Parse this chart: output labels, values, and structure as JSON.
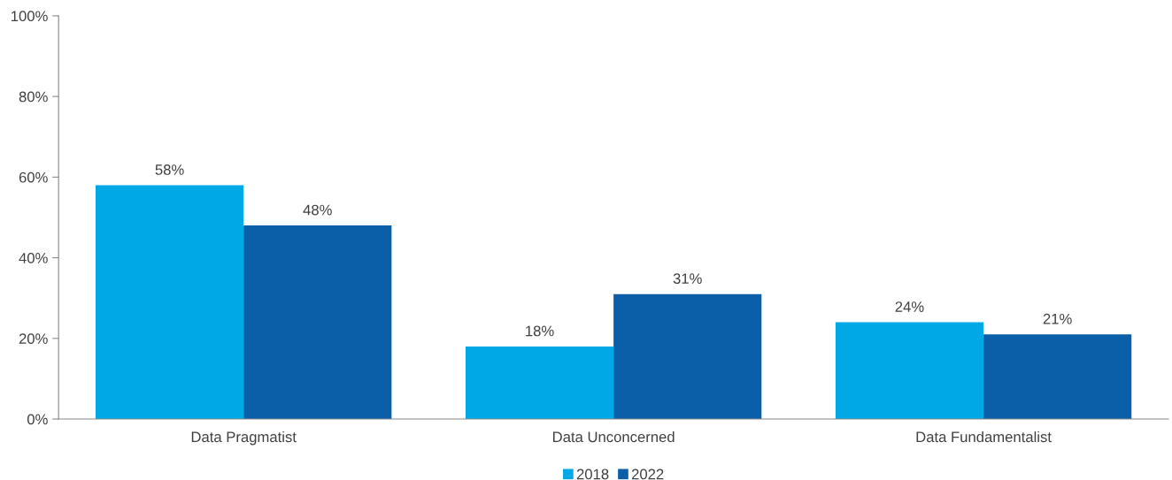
{
  "chart_data": {
    "type": "bar",
    "categories": [
      "Data Pragmatist",
      "Data Unconcerned",
      "Data Fundamentalist"
    ],
    "series": [
      {
        "name": "2018",
        "color": "#00a8e6",
        "values": [
          58,
          18,
          24
        ],
        "value_labels": [
          "58%",
          "18%",
          "24%"
        ]
      },
      {
        "name": "2022",
        "color": "#0b5ea8",
        "values": [
          48,
          31,
          21
        ],
        "value_labels": [
          "48%",
          "31%",
          "21%"
        ]
      }
    ],
    "ylim": [
      0,
      100
    ],
    "yticks": [
      {
        "value": 0,
        "label": "0%"
      },
      {
        "value": 20,
        "label": "20%"
      },
      {
        "value": 40,
        "label": "40%"
      },
      {
        "value": 60,
        "label": "60%"
      },
      {
        "value": 80,
        "label": "80%"
      },
      {
        "value": 100,
        "label": "100%"
      }
    ],
    "grid": false,
    "legend": "bottom"
  }
}
